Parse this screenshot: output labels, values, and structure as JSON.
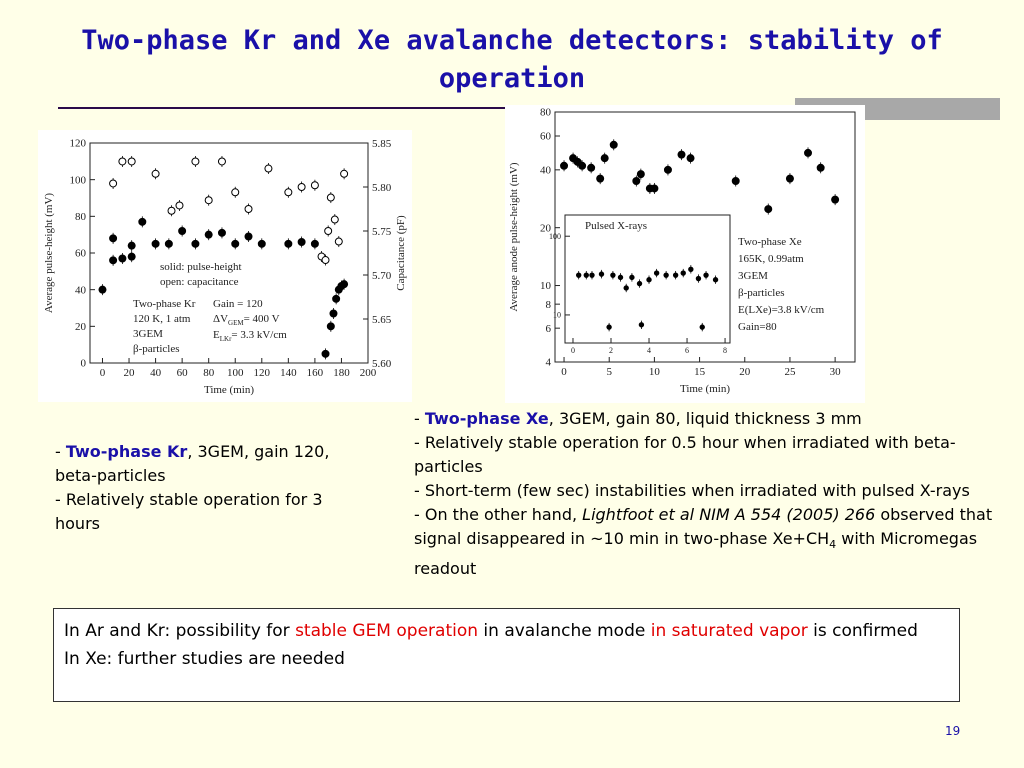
{
  "title": "Two-phase Kr and Xe avalanche detectors: stability of operation",
  "left_text": [
    [
      "- ",
      "Two-phase Kr",
      ", 3GEM, gain 120, beta-particles"
    ],
    [
      "- Relatively stable operation for 3 hours"
    ]
  ],
  "right_text": [
    [
      "- ",
      "Two-phase Xe",
      ", 3GEM, gain 80, liquid thickness 3 mm"
    ],
    [
      "- Relatively stable operation for 0.5 hour when irradiated with beta-particles"
    ],
    [
      "- Short-term (few sec) instabilities when irradiated with pulsed X-rays"
    ],
    [
      "- On the other hand, ",
      "Lightfoot et al NIM A 554 (2005) 266",
      " observed that signal disappeared  in ~10 min  in two-phase Xe+CH",
      "4",
      " with Micromegas readout"
    ]
  ],
  "conclusion": [
    [
      "In Ar and Kr: possibility for ",
      "stable GEM operation",
      " in avalanche mode ",
      "in saturated vapor",
      " is confirmed"
    ],
    [
      "In Xe: further studies are needed"
    ]
  ],
  "page_number": "19",
  "chart_data": [
    {
      "type": "scatter",
      "xlabel": "Time (min)",
      "ylabel": "Average pulse-height (mV)",
      "y2label": "Capacitance (pF)",
      "xlim": [
        -9.4,
        200
      ],
      "xticks": [
        0,
        20,
        40,
        60,
        80,
        100,
        120,
        140,
        160,
        180,
        200
      ],
      "ylim": [
        0,
        120
      ],
      "yticks": [
        0,
        20,
        40,
        60,
        80,
        100,
        120
      ],
      "y2lim": [
        5.6,
        5.85
      ],
      "y2ticks": [
        {
          "value": 5.6,
          "label": "5.60"
        },
        5.65,
        {
          "value": 5.7,
          "label": "5.70"
        },
        5.75,
        {
          "value": 5.8,
          "label": "5.80"
        },
        5.85
      ],
      "annotations": [
        "solid: pulse-height",
        "open: capacitance",
        "Two-phase Kr",
        "120 K, 1 atm",
        "3GEM",
        "β-particles",
        "Gain = 120",
        [
          "ΔV",
          "GEM",
          "= 400 V"
        ],
        [
          "E",
          "LKr",
          "= 3.3 kV/cm"
        ]
      ],
      "series": [
        {
          "color": "#000000",
          "marker": "filled",
          "x": [
            0,
            8,
            8,
            15,
            22,
            22,
            30,
            40,
            50,
            60,
            70,
            80,
            90,
            100,
            110,
            120,
            140,
            150,
            160,
            168,
            172,
            174,
            176,
            178,
            180,
            182
          ],
          "values": [
            40,
            56,
            68,
            57,
            58,
            64,
            77,
            65,
            65,
            72,
            65,
            70,
            71,
            65,
            69,
            65,
            65,
            66,
            65,
            5,
            20,
            27,
            35,
            40,
            42,
            43
          ]
        },
        {
          "color": "#000000",
          "marker": "open",
          "axis": "y2",
          "x": [
            8,
            15,
            22,
            40,
            52,
            58,
            70,
            80,
            90,
            100,
            110,
            125,
            140,
            150,
            160,
            165,
            168,
            170,
            172,
            175,
            178,
            182
          ],
          "values": [
            5.804,
            5.829,
            5.829,
            5.815,
            5.773,
            5.779,
            5.829,
            5.785,
            5.829,
            5.794,
            5.775,
            5.821,
            5.794,
            5.8,
            5.802,
            5.721,
            5.717,
            5.75,
            5.788,
            5.763,
            5.738,
            5.815
          ]
        }
      ]
    },
    {
      "type": "scatter",
      "log_y": true,
      "xlabel": "Time (min)",
      "ylabel": "Average anode pulse-height (mV)",
      "xlim": [
        -1,
        32.2
      ],
      "xticks": [
        0,
        5,
        10,
        15,
        20,
        25,
        30
      ],
      "ylim": [
        4,
        80
      ],
      "yticks": [
        4,
        6,
        8,
        10,
        20,
        40,
        60,
        80
      ],
      "annotations": [
        "Two-phase Xe",
        "165K, 0.99atm",
        "3GEM",
        "β-particles",
        "E(LXe)=3.8 kV/cm",
        "Gain=80"
      ],
      "series": [
        {
          "color": "#000000",
          "marker": "filled",
          "x": [
            0,
            1,
            1.5,
            2,
            3,
            4,
            4.5,
            5.5,
            8,
            8.5,
            9.5,
            10,
            11.5,
            13,
            14,
            19,
            22.6,
            25,
            27,
            28.4,
            30
          ],
          "values": [
            42,
            46,
            44,
            42,
            41,
            36,
            46,
            54,
            35,
            38,
            32,
            32,
            40,
            48,
            46,
            35,
            25,
            36,
            49,
            41,
            28
          ]
        }
      ]
    },
    {
      "type": "scatter",
      "log_y": true,
      "title": "Pulsed X-rays",
      "xlim": [
        -0.42,
        8.26
      ],
      "xticks": [
        0,
        2,
        4,
        6,
        8
      ],
      "ylim": [
        4.4,
        186
      ],
      "yticks": [
        10,
        100
      ],
      "series": [
        {
          "color": "#000000",
          "marker": "filled",
          "x": [
            0.3,
            0.7,
            1,
            1.5,
            1.9,
            2.1,
            2.5,
            2.8,
            3.1,
            3.5,
            3.6,
            4,
            4.4,
            4.9,
            5.4,
            5.8,
            6.2,
            6.6,
            6.8,
            7,
            7.5
          ],
          "values": [
            32,
            32,
            32,
            33,
            7,
            32,
            30,
            22,
            30,
            25,
            7.5,
            28,
            34,
            32,
            32,
            34,
            38,
            29,
            7,
            32,
            28
          ]
        }
      ]
    }
  ]
}
